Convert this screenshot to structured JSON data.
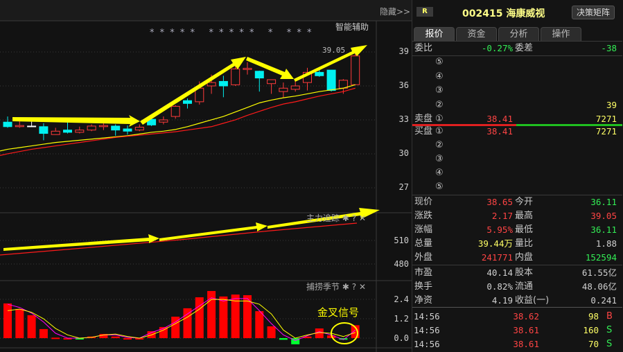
{
  "chart_header": {
    "hide_label": "隐藏>>",
    "indicator_title": "智能辅助",
    "stars": [
      "* * * * *",
      "* * * * *",
      "*",
      "* * *"
    ],
    "high_label": "39.05"
  },
  "price_axis": {
    "ticks": [
      "39",
      "36",
      "33",
      "30",
      "27"
    ],
    "values": [
      39,
      36,
      33,
      30,
      27
    ]
  },
  "pane2": {
    "title": "主力追踪",
    "axis_ticks": [
      "510",
      "480"
    ]
  },
  "pane3": {
    "title": "捕捞季节",
    "axis_ticks": [
      "2.4",
      "1.2",
      "0.0"
    ],
    "annotation": "金叉信号"
  },
  "icons": {
    "settings": "gear-icon",
    "help": "question-icon",
    "close": "close-icon"
  },
  "colors": {
    "up": "#ff3b3b",
    "down": "#00f0f0",
    "ma_short": "#ffff00",
    "ma_long": "#ff1a1a",
    "arrow": "#ffff00",
    "macd_line": "#ff00ff"
  },
  "chart_data": {
    "type": "candlestick",
    "ohlc": [
      [
        32.8,
        33.3,
        32.3,
        32.4
      ],
      [
        32.4,
        33.0,
        32.3,
        32.5
      ],
      [
        32.45,
        33.2,
        32.4,
        32.45
      ],
      [
        32.4,
        32.7,
        31.2,
        31.8
      ],
      [
        31.7,
        32.3,
        31.7,
        32.0
      ],
      [
        32.1,
        33.0,
        31.8,
        31.9
      ],
      [
        31.9,
        32.4,
        31.8,
        32.1
      ],
      [
        32.1,
        32.6,
        32.0,
        32.45
      ],
      [
        32.4,
        32.9,
        32.1,
        32.5
      ],
      [
        32.45,
        32.6,
        31.6,
        32.1
      ],
      [
        32.2,
        32.5,
        31.7,
        32.0
      ],
      [
        32.1,
        32.6,
        32.0,
        32.35
      ],
      [
        33.05,
        33.4,
        32.45,
        32.55
      ],
      [
        32.8,
        33.3,
        32.6,
        33.0
      ],
      [
        33.3,
        34.3,
        33.1,
        34.2
      ],
      [
        34.7,
        34.9,
        34.0,
        34.45
      ],
      [
        34.6,
        36.4,
        34.35,
        35.8
      ],
      [
        36.0,
        37.0,
        35.3,
        36.3
      ],
      [
        36.4,
        36.9,
        35.0,
        36.0
      ],
      [
        36.1,
        37.8,
        36.0,
        37.5
      ],
      [
        37.45,
        38.1,
        37.0,
        37.55
      ],
      [
        37.3,
        37.35,
        35.5,
        36.7
      ],
      [
        36.2,
        36.55,
        35.3,
        36.55
      ],
      [
        35.5,
        36.3,
        35.0,
        35.8
      ],
      [
        35.7,
        36.4,
        35.5,
        36.0
      ],
      [
        36.3,
        37.6,
        35.6,
        37.2
      ],
      [
        37.2,
        37.5,
        36.8,
        36.9
      ],
      [
        37.4,
        37.4,
        35.5,
        35.6
      ],
      [
        35.8,
        36.6,
        35.3,
        36.5
      ],
      [
        36.11,
        39.05,
        36.11,
        38.65
      ]
    ],
    "ma_short": [
      30.4,
      30.55,
      30.7,
      30.85,
      31.0,
      31.1,
      31.2,
      31.3,
      31.4,
      31.5,
      31.6,
      31.75,
      31.9,
      32.0,
      32.15,
      32.4,
      32.7,
      33.0,
      33.3,
      33.7,
      34.1,
      34.5,
      34.75,
      34.95,
      35.1,
      35.3,
      35.5,
      35.65,
      35.8,
      36.1
    ],
    "ma_long": [
      30.0,
      30.2,
      30.4,
      30.55,
      30.7,
      30.85,
      31.0,
      31.15,
      31.3,
      31.45,
      31.55,
      31.65,
      31.75,
      31.85,
      31.95,
      32.1,
      32.25,
      32.4,
      32.7,
      33.0,
      33.4,
      33.75,
      34.1,
      34.4,
      34.6,
      34.85,
      35.1,
      35.3,
      35.5,
      35.8
    ],
    "ylim": [
      26,
      41
    ],
    "indicator": {
      "bars": [
        2.15,
        1.8,
        1.42,
        0.56,
        0.03,
        0.0,
        -0.02,
        0.1,
        0.26,
        0.1,
        0.0,
        0.0,
        0.43,
        0.69,
        1.33,
        1.85,
        2.53,
        2.92,
        2.58,
        2.7,
        2.66,
        1.67,
        0.73,
        -0.1,
        -0.38,
        0.1,
        0.6,
        0.17,
        -0.1,
        0.8
      ],
      "line_fast": [
        2.1,
        1.9,
        1.55,
        1.0,
        0.3,
        0.0,
        0.0,
        0.05,
        0.2,
        0.2,
        0.05,
        0.0,
        0.35,
        0.6,
        1.0,
        1.5,
        2.0,
        2.5,
        2.3,
        2.45,
        2.45,
        1.7,
        0.9,
        0.2,
        -0.15,
        0.15,
        0.4,
        0.2,
        -0.1,
        0.5
      ],
      "line_slow": [
        1.7,
        1.8,
        1.6,
        1.2,
        0.6,
        0.2,
        0.0,
        0.05,
        0.2,
        0.25,
        0.1,
        0.0,
        0.2,
        0.5,
        0.9,
        1.3,
        1.8,
        2.4,
        2.4,
        2.3,
        2.3,
        2.1,
        1.5,
        0.5,
        0.0,
        0.2,
        0.35,
        0.3,
        0.1,
        0.35
      ],
      "ylim": [
        -0.5,
        3.2
      ]
    }
  },
  "quote": {
    "badge": "R",
    "code_name": "002415 海康威视",
    "decision_btn": "决策矩阵",
    "tabs": [
      "报价",
      "资金",
      "分析",
      "操作"
    ],
    "weibi_label": "委比",
    "weibi": "-0.27%",
    "weicha_label": "委差",
    "weicha": "-38",
    "sell": [
      {
        "label": "",
        "idx": "⑤",
        "price": "",
        "vol": ""
      },
      {
        "label": "",
        "idx": "④",
        "price": "",
        "vol": ""
      },
      {
        "label": "",
        "idx": "③",
        "price": "",
        "vol": ""
      },
      {
        "label": "",
        "idx": "②",
        "price": "",
        "vol": "39"
      },
      {
        "label": "卖盘",
        "idx": "①",
        "price": "38.41",
        "vol": "7271"
      }
    ],
    "buy": [
      {
        "label": "买盘",
        "idx": "①",
        "price": "38.41",
        "vol": "7271"
      },
      {
        "label": "",
        "idx": "②",
        "price": "",
        "vol": ""
      },
      {
        "label": "",
        "idx": "③",
        "price": "",
        "vol": ""
      },
      {
        "label": "",
        "idx": "④",
        "price": "",
        "vol": ""
      },
      {
        "label": "",
        "idx": "⑤",
        "price": "",
        "vol": ""
      }
    ],
    "stats": [
      {
        "l1": "现价",
        "v1": "38.65",
        "c1": "r",
        "l2": "今开",
        "v2": "36.11",
        "c2": "g"
      },
      {
        "l1": "涨跌",
        "v1": "2.17",
        "c1": "r",
        "l2": "最高",
        "v2": "39.05",
        "c2": "r"
      },
      {
        "l1": "涨幅",
        "v1": "5.95%",
        "c1": "r",
        "l2": "最低",
        "v2": "36.11",
        "c2": "g"
      },
      {
        "l1": "总量",
        "v1": "39.44万",
        "c1": "y",
        "l2": "量比",
        "v2": "1.88",
        "c2": "w"
      },
      {
        "l1": "外盘",
        "v1": "241771",
        "c1": "r",
        "l2": "内盘",
        "v2": "152594",
        "c2": "g"
      },
      {
        "l1": "市盈",
        "v1": "40.14",
        "c1": "w",
        "l2": "股本",
        "v2": "61.55亿",
        "c2": "w"
      },
      {
        "l1": "换手",
        "v1": "0.82%",
        "c1": "w",
        "l2": "流通",
        "v2": "48.06亿",
        "c2": "w"
      },
      {
        "l1": "净资",
        "v1": "4.19",
        "c1": "w",
        "l2": "收益(一)",
        "v2": "0.241",
        "c2": "w"
      }
    ],
    "trades": [
      {
        "time": "14:56",
        "price": "38.62",
        "vol": "98",
        "side": "B"
      },
      {
        "time": "14:56",
        "price": "38.61",
        "vol": "160",
        "side": "S"
      },
      {
        "time": "14:56",
        "price": "38.61",
        "vol": "70",
        "side": "S"
      }
    ]
  }
}
